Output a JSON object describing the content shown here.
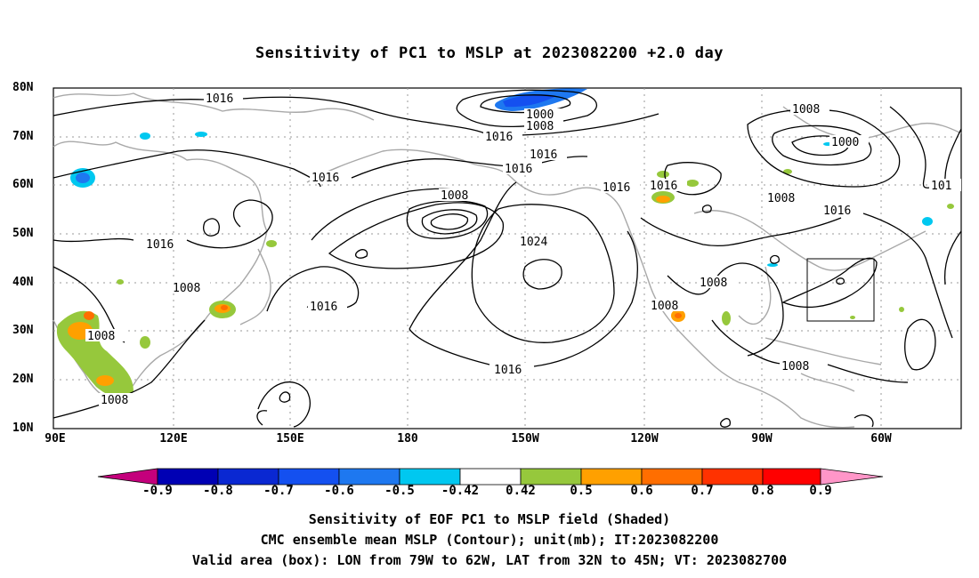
{
  "title": "Sensitivity of PC1 to MSLP at 2023082200 +2.0 day",
  "lat_labels": [
    "80N",
    "70N",
    "60N",
    "50N",
    "40N",
    "30N",
    "20N",
    "10N"
  ],
  "lon_labels": [
    "90E",
    "120E",
    "150E",
    "180",
    "150W",
    "120W",
    "90W",
    "60W"
  ],
  "contour_labels": [
    "1016",
    "1000",
    "1008",
    "1016",
    "1016",
    "1016",
    "1016",
    "1008",
    "1024",
    "1016",
    "1016",
    "1016",
    "1008",
    "1000",
    "1008",
    "1016",
    "101",
    "1016",
    "1008",
    "1008",
    "1008",
    "1016",
    "1008",
    "1008",
    "1008"
  ],
  "colorbar": {
    "labels": [
      "-0.9",
      "-0.8",
      "-0.7",
      "-0.6",
      "-0.5",
      "-0.42",
      "0.42",
      "0.5",
      "0.6",
      "0.7",
      "0.8",
      "0.9"
    ],
    "colors": [
      "#c4007c",
      "#0000b4",
      "#0a28d2",
      "#1450f0",
      "#1e78f0",
      "#00c8f0",
      "#ffffff",
      "#96c83c",
      "#ffa000",
      "#ff6e00",
      "#ff3200",
      "#ff0000",
      "#ff96c8"
    ]
  },
  "footer": {
    "line1": "Sensitivity of EOF PC1 to MSLP field (Shaded)",
    "line2": "CMC ensemble mean MSLP (Contour); unit(mb); IT:2023082200",
    "line3": "Valid area (box): LON from 79W to 62W, LAT from 32N to 45N; VT: 2023082700"
  }
}
